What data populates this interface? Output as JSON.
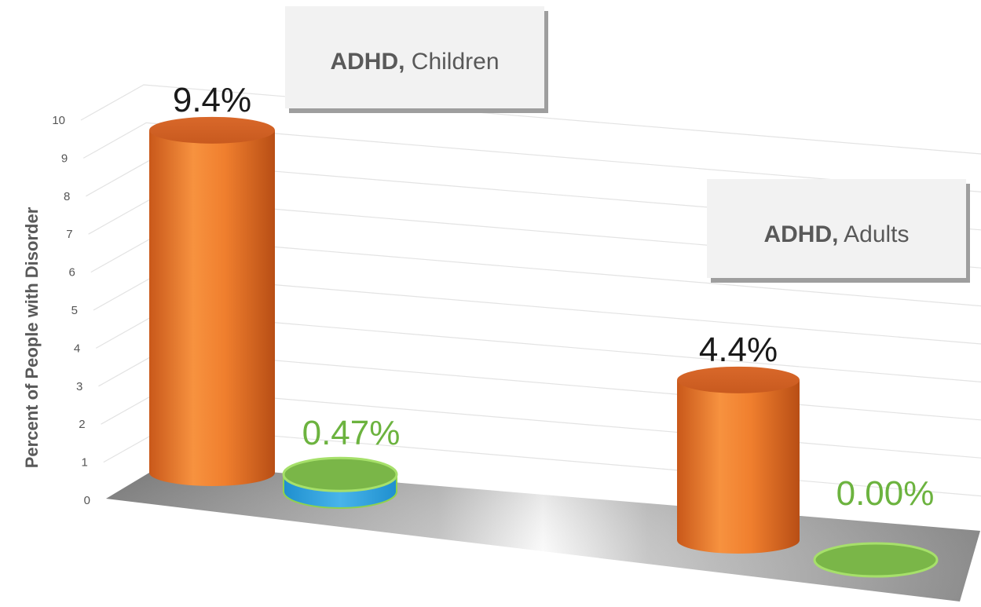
{
  "chart_data": {
    "type": "bar",
    "ylabel": "Percent of People with Disorder",
    "ylim": [
      0,
      10
    ],
    "yticks": [
      "0",
      "1",
      "2",
      "3",
      "4",
      "5",
      "6",
      "7",
      "8",
      "9",
      "10"
    ],
    "grid": true,
    "categories": [
      {
        "name_bold": "ADHD,",
        "name_rest": "Children"
      },
      {
        "name_bold": "ADHD,",
        "name_rest": "Adults"
      }
    ],
    "series": [
      {
        "color": "#f07f2e",
        "values": [
          9.4,
          4.4
        ],
        "labels": [
          "9.4%",
          "4.4%"
        ],
        "label_color": "#1a1a1a"
      },
      {
        "color": "#7ab648",
        "values": [
          0.47,
          0.0
        ],
        "labels": [
          "0.47%",
          "0.00%"
        ],
        "label_color": "#6cb33f"
      }
    ]
  }
}
